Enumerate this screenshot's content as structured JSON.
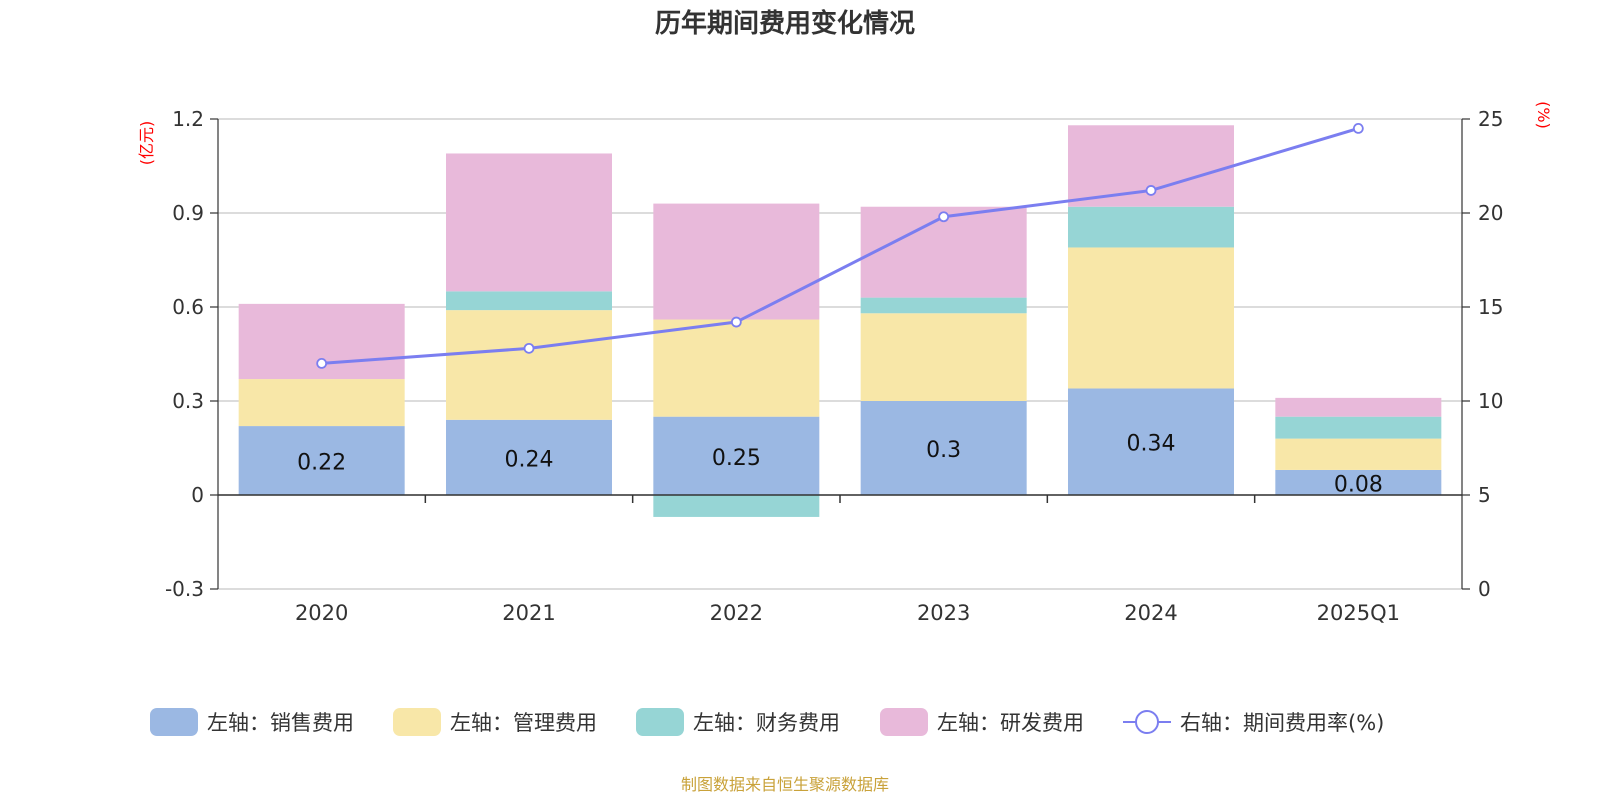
{
  "chart_data": {
    "type": "bar",
    "stacked": true,
    "title": "历年期间费用变化情况",
    "categories": [
      "2020",
      "2021",
      "2022",
      "2023",
      "2024",
      "2025Q1"
    ],
    "left_axis": {
      "unit": "(亿元)",
      "ylim": [
        -0.3,
        1.2
      ],
      "ticks": [
        "-0.3",
        "0",
        "0.3",
        "0.6",
        "0.9",
        "1.2"
      ],
      "tick_values": [
        -0.3,
        0,
        0.3,
        0.6,
        0.9,
        1.2
      ]
    },
    "right_axis": {
      "unit": "(%)",
      "ylim": [
        0,
        25
      ],
      "ticks": [
        "0",
        "5",
        "10",
        "15",
        "20",
        "25"
      ],
      "tick_values": [
        0,
        5,
        10,
        15,
        20,
        25
      ]
    },
    "grid": true,
    "legend_position": "bottom",
    "series": [
      {
        "name": "左轴：销售费用",
        "type": "bar",
        "axis": "left",
        "color": "#9bb8e3",
        "values": [
          0.22,
          0.24,
          0.25,
          0.3,
          0.34,
          0.08
        ],
        "labels": [
          "0.22",
          "0.24",
          "0.25",
          "0.3",
          "0.34",
          "0.08"
        ]
      },
      {
        "name": "左轴：管理费用",
        "type": "bar",
        "axis": "left",
        "color": "#f8e7a8",
        "values": [
          0.15,
          0.35,
          0.31,
          0.28,
          0.45,
          0.1
        ]
      },
      {
        "name": "左轴：财务费用",
        "type": "bar",
        "axis": "left",
        "color": "#96d5d5",
        "values": [
          0,
          0.06,
          -0.07,
          0.05,
          0.13,
          0.07
        ]
      },
      {
        "name": "左轴：研发费用",
        "type": "bar",
        "axis": "left",
        "color": "#e8b9da",
        "values": [
          0.24,
          0.44,
          0.37,
          0.29,
          0.26,
          0.06
        ]
      },
      {
        "name": "右轴：期间费用率(%)",
        "type": "line",
        "axis": "right",
        "color": "#7b7ef0",
        "values": [
          12.0,
          12.8,
          14.2,
          19.8,
          21.2,
          24.5
        ]
      }
    ],
    "footer": "制图数据来自恒生聚源数据库"
  }
}
